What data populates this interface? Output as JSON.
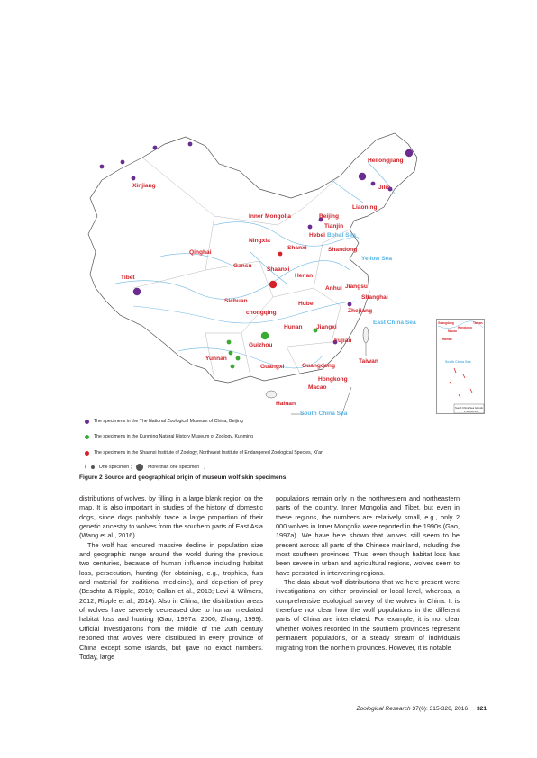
{
  "figure": {
    "caption": "Figure 2  Source and geographical origin of museum wolf skin specimens",
    "province_labels": [
      "Heilongjiang",
      "Jilin",
      "Xinjiang",
      "Liaoning",
      "Inner Mongolia",
      "Beijing",
      "Tianjin",
      "Hebei",
      "Ningxia",
      "Shanxi",
      "Shandong",
      "Qinghai",
      "Gansu",
      "Shaanxi",
      "Henan",
      "Tibet",
      "Anhui",
      "Jiangsu",
      "Shanghai",
      "Sichuan",
      "Hubei",
      "chongqing",
      "Zhejiang",
      "Hunan",
      "Jiangxi",
      "Fujian",
      "Guizhou",
      "Yunnan",
      "Taiwan",
      "Guangxi",
      "Guangdong",
      "Hongkong",
      "Macao",
      "Hainan"
    ],
    "sea_labels": [
      "Bohai Sea",
      "Yellow Sea",
      "East China Sea",
      "South China Sea"
    ],
    "inset_labels": [
      "Guangdong",
      "Taiwan",
      "Hongkong",
      "Macao",
      "Hainan",
      "South China Sea",
      "South China Sea Islands",
      "1:44 000 000"
    ],
    "legend": [
      {
        "text": "The specimens in the The National Zoological Museum of China, Beijing",
        "color": "#6a2c91"
      },
      {
        "text": "The specimens in the Kunming Natural History Museum of Zoology, Kunming",
        "color": "#3aaa35"
      },
      {
        "text": "The specimens in the Shaanxi Institute of Zoology, Northwest Institute of Endangered Zoological Species, Xi'an",
        "color": "#d2232a"
      }
    ],
    "size_key": {
      "open": "(",
      "one": "One specimen ;",
      "more": "More than one specimen",
      "close": ")"
    }
  },
  "left_column": [
    "distributions of wolves, by filling in a large blank region on the map. It is also important in studies of the history of domestic dogs, since dogs probably trace a large proportion of their genetic ancestry to wolves from the southern parts of East Asia (Wang et al., 2016).",
    "The wolf has endured massive decline in population size and geographic range around the world during the previous two centuries, because of human influence including habitat loss, persecution, hunting (for obtaining, e.g., trophies, furs and material for traditional medicine), and depletion of prey (Beschta & Ripple, 2010; Callan et al., 2013; Levi & Wilmers, 2012; Ripple et al., 2014). Also in China, the distribution areas of wolves have severely decreased due to human mediated habitat loss and hunting (Gao, 1997a, 2006; Zhang, 1999). Official investigations from the middle of the 20th century reported that wolves were distributed in every province of China except some islands, but gave no exact numbers. Today, large"
  ],
  "right_column": [
    "populations remain only in the northwestern and northeastern parts of the country, Inner Mongolia and Tibet, but even in these regions, the numbers are relatively small, e.g., only 2 000 wolves in Inner Mongolia were reported in the 1990s (Gao, 1997a). We have here shown that wolves still seem to be present across all parts of the Chinese mainland, including the most southern provinces. Thus, even though habitat loss has been severe in urban and agricultural regions, wolves seem to have persisted in intervening regions.",
    "The data about wolf distributions that we here present were investigations on either provincial or local level, whereas, a comprehensive ecological survey of the wolves in China. It is therefore not clear how the wolf populations in the different parts of China are interrelated. For example, it is not clear whether wolves recorded in the southern provinces represent permanent populations, or a steady stream of individuals migrating from the northern provinces. However, it is notable"
  ],
  "footer": {
    "journal": "Zoological Research",
    "volume": "37(6): 315-326, 2016",
    "page": "321"
  }
}
